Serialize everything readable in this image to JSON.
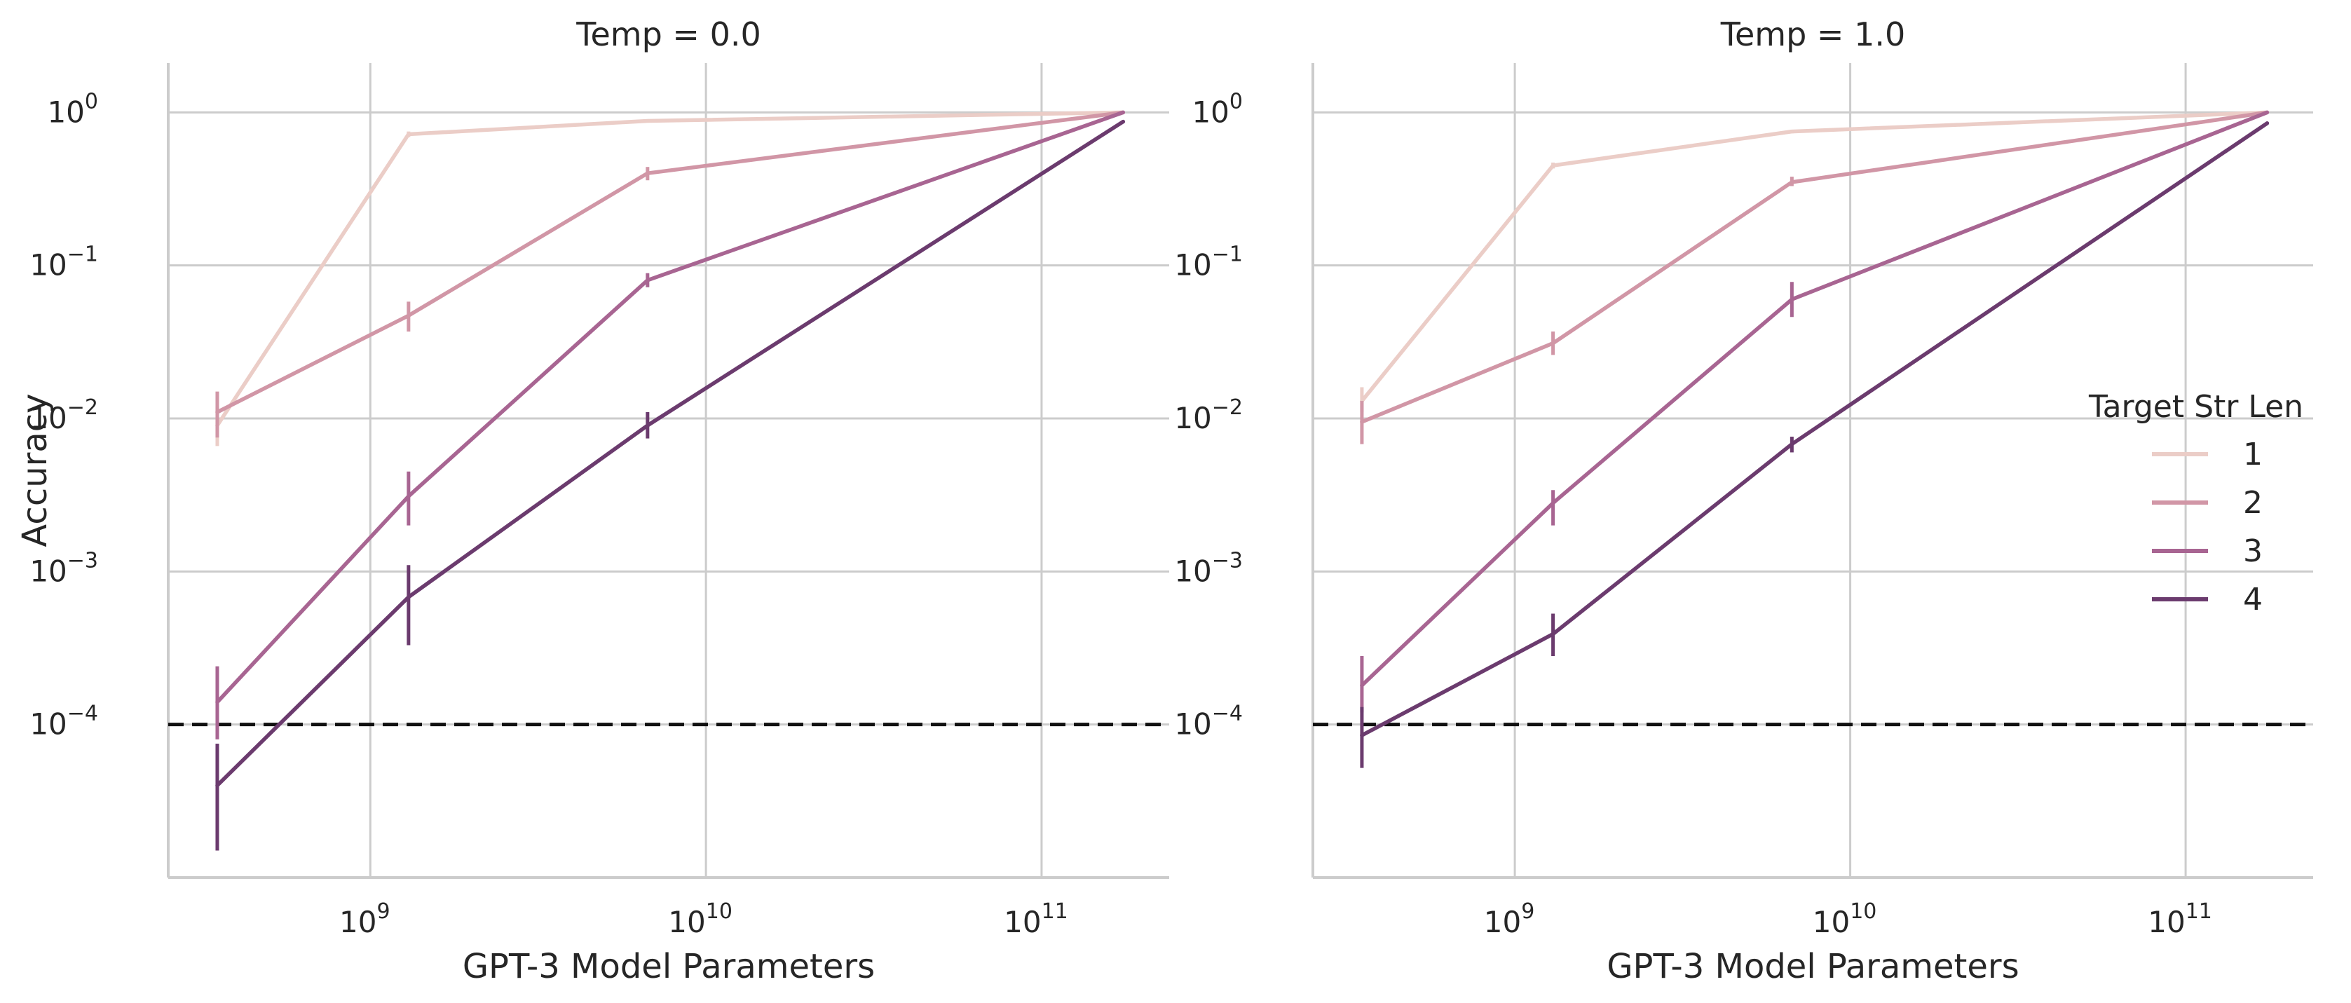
{
  "chart_data": [
    {
      "type": "line",
      "title": "Temp = 0.0",
      "xlabel": "GPT-3 Model Parameters",
      "ylabel": "Accuracy",
      "xscale": "log",
      "yscale": "log",
      "xlim": [
        250000000.0,
        240000000000.0
      ],
      "ylim": [
        1e-05,
        2.1
      ],
      "xticks": [
        {
          "exp": "9",
          "value": 1000000000.0
        },
        {
          "exp": "10",
          "value": 10000000000.0
        },
        {
          "exp": "11",
          "value": 100000000000.0
        }
      ],
      "yticks": [
        {
          "exp": "0",
          "value": 1
        },
        {
          "exp": "−1",
          "value": 0.1
        },
        {
          "exp": "−2",
          "value": 0.01
        },
        {
          "exp": "−3",
          "value": 0.001
        },
        {
          "exp": "−4",
          "value": 0.0001
        }
      ],
      "reference_line": 0.0001,
      "grid": true,
      "x": [
        350000000.0,
        1300000000.0,
        6700000000.0,
        175000000000.0
      ],
      "series": [
        {
          "name": "1",
          "values": [
            0.009,
            0.72,
            0.88,
            1.0
          ],
          "err_low": [
            0.0066,
            0.69,
            0.86,
            0.99
          ],
          "err_high": [
            0.012,
            0.75,
            0.9,
            1.0
          ]
        },
        {
          "name": "2",
          "values": [
            0.011,
            0.047,
            0.4,
            1.0
          ],
          "err_low": [
            0.0075,
            0.037,
            0.36,
            0.99
          ],
          "err_high": [
            0.015,
            0.058,
            0.44,
            1.0
          ]
        },
        {
          "name": "3",
          "values": [
            0.00014,
            0.0031,
            0.08,
            1.0
          ],
          "err_low": [
            8e-05,
            0.002,
            0.072,
            0.99
          ],
          "err_high": [
            0.00024,
            0.0045,
            0.089,
            1.0
          ]
        },
        {
          "name": "4",
          "values": [
            4e-05,
            0.00068,
            0.009,
            0.87
          ],
          "err_low": [
            1.5e-05,
            0.00033,
            0.0074,
            0.86
          ],
          "err_high": [
            7.5e-05,
            0.0011,
            0.011,
            0.88
          ]
        }
      ]
    },
    {
      "type": "line",
      "title": "Temp = 1.0",
      "xlabel": "GPT-3 Model Parameters",
      "ylabel": "",
      "xscale": "log",
      "yscale": "log",
      "xlim": [
        250000000.0,
        240000000000.0
      ],
      "ylim": [
        1e-05,
        2.1
      ],
      "xticks": [
        {
          "exp": "9",
          "value": 1000000000.0
        },
        {
          "exp": "10",
          "value": 10000000000.0
        },
        {
          "exp": "11",
          "value": 100000000000.0
        }
      ],
      "yticks": [
        {
          "exp": "0",
          "value": 1
        },
        {
          "exp": "−1",
          "value": 0.1
        },
        {
          "exp": "−2",
          "value": 0.01
        },
        {
          "exp": "−3",
          "value": 0.001
        },
        {
          "exp": "−4",
          "value": 0.0001
        }
      ],
      "reference_line": 0.0001,
      "grid": true,
      "x": [
        350000000.0,
        1300000000.0,
        6700000000.0,
        175000000000.0
      ],
      "series": [
        {
          "name": "1",
          "values": [
            0.013,
            0.45,
            0.75,
            1.0
          ],
          "err_low": [
            0.011,
            0.43,
            0.73,
            0.99
          ],
          "err_high": [
            0.016,
            0.47,
            0.77,
            1.0
          ]
        },
        {
          "name": "2",
          "values": [
            0.0095,
            0.031,
            0.35,
            1.0
          ],
          "err_low": [
            0.0068,
            0.026,
            0.33,
            0.99
          ],
          "err_high": [
            0.013,
            0.037,
            0.38,
            1.0
          ]
        },
        {
          "name": "3",
          "values": [
            0.00018,
            0.0028,
            0.06,
            1.0
          ],
          "err_low": [
            0.00012,
            0.002,
            0.046,
            0.99
          ],
          "err_high": [
            0.00028,
            0.0034,
            0.078,
            1.0
          ]
        },
        {
          "name": "4",
          "values": [
            8.5e-05,
            0.00039,
            0.0068,
            0.85
          ],
          "err_low": [
            5.2e-05,
            0.00028,
            0.006,
            0.84
          ],
          "err_high": [
            0.00013,
            0.00053,
            0.0076,
            0.86
          ]
        }
      ]
    }
  ],
  "legend": {
    "title": "Target Str Len",
    "placement": "center-right",
    "entries": [
      {
        "label": "1",
        "color": "#ebcdc7"
      },
      {
        "label": "2",
        "color": "#d196a6"
      },
      {
        "label": "3",
        "color": "#a86592"
      },
      {
        "label": "4",
        "color": "#6b3b6e"
      }
    ]
  },
  "colors": {
    "series": [
      "#ebcdc7",
      "#d196a6",
      "#a86592",
      "#6b3b6e"
    ],
    "grid": "#cccccc",
    "reference_line": "#111111",
    "text": "#262626"
  }
}
